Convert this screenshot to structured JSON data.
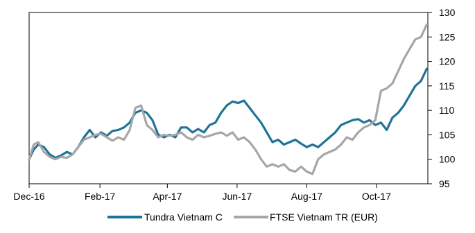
{
  "chart_data": {
    "type": "line",
    "title": "",
    "xlabel": "",
    "ylabel": "",
    "x_ticks": [
      "Dec-16",
      "Feb-17",
      "Apr-17",
      "Jun-17",
      "Aug-17",
      "Oct-17"
    ],
    "x_range": [
      "2016-12-01",
      "2017-11-15"
    ],
    "ylim": [
      95,
      130
    ],
    "y_ticks": [
      95,
      100,
      105,
      110,
      115,
      120,
      125,
      130
    ],
    "y_axis_side": "right",
    "grid": false,
    "legend": "bottom",
    "series": [
      {
        "name": "Tundra Vietnam C",
        "color": "#1e7396",
        "points": [
          [
            "2016-12-01",
            100.0
          ],
          [
            "2016-12-05",
            102.0
          ],
          [
            "2016-12-09",
            103.0
          ],
          [
            "2016-12-14",
            102.5
          ],
          [
            "2016-12-19",
            101.0
          ],
          [
            "2016-12-24",
            100.3
          ],
          [
            "2016-12-29",
            100.8
          ],
          [
            "2017-01-03",
            101.5
          ],
          [
            "2017-01-08",
            101.0
          ],
          [
            "2017-01-13",
            102.5
          ],
          [
            "2017-01-18",
            104.5
          ],
          [
            "2017-01-23",
            106.0
          ],
          [
            "2017-01-28",
            104.5
          ],
          [
            "2017-02-02",
            105.5
          ],
          [
            "2017-02-07",
            104.8
          ],
          [
            "2017-02-12",
            105.8
          ],
          [
            "2017-02-17",
            106.0
          ],
          [
            "2017-02-22",
            106.5
          ],
          [
            "2017-02-27",
            107.5
          ],
          [
            "2017-03-04",
            109.5
          ],
          [
            "2017-03-09",
            110.0
          ],
          [
            "2017-03-14",
            109.5
          ],
          [
            "2017-03-19",
            108.0
          ],
          [
            "2017-03-24",
            105.0
          ],
          [
            "2017-03-29",
            104.5
          ],
          [
            "2017-04-03",
            105.0
          ],
          [
            "2017-04-08",
            104.5
          ],
          [
            "2017-04-13",
            106.5
          ],
          [
            "2017-04-18",
            106.5
          ],
          [
            "2017-04-23",
            105.5
          ],
          [
            "2017-04-28",
            106.2
          ],
          [
            "2017-05-03",
            105.5
          ],
          [
            "2017-05-08",
            107.0
          ],
          [
            "2017-05-13",
            107.5
          ],
          [
            "2017-05-18",
            109.5
          ],
          [
            "2017-05-23",
            111.0
          ],
          [
            "2017-05-28",
            111.8
          ],
          [
            "2017-06-02",
            111.5
          ],
          [
            "2017-06-07",
            112.0
          ],
          [
            "2017-06-12",
            110.5
          ],
          [
            "2017-06-17",
            109.0
          ],
          [
            "2017-06-22",
            107.5
          ],
          [
            "2017-06-27",
            105.5
          ],
          [
            "2017-07-02",
            103.5
          ],
          [
            "2017-07-07",
            104.0
          ],
          [
            "2017-07-12",
            103.0
          ],
          [
            "2017-07-17",
            103.5
          ],
          [
            "2017-07-22",
            104.0
          ],
          [
            "2017-07-27",
            103.2
          ],
          [
            "2017-08-01",
            102.5
          ],
          [
            "2017-08-06",
            103.0
          ],
          [
            "2017-08-11",
            102.5
          ],
          [
            "2017-08-16",
            103.5
          ],
          [
            "2017-08-21",
            104.5
          ],
          [
            "2017-08-26",
            105.5
          ],
          [
            "2017-08-31",
            107.0
          ],
          [
            "2017-09-05",
            107.5
          ],
          [
            "2017-09-10",
            108.0
          ],
          [
            "2017-09-15",
            108.2
          ],
          [
            "2017-09-20",
            107.5
          ],
          [
            "2017-09-25",
            108.0
          ],
          [
            "2017-09-30",
            107.0
          ],
          [
            "2017-10-05",
            107.5
          ],
          [
            "2017-10-10",
            106.0
          ],
          [
            "2017-10-15",
            108.5
          ],
          [
            "2017-10-20",
            109.5
          ],
          [
            "2017-10-25",
            111.0
          ],
          [
            "2017-10-30",
            113.0
          ],
          [
            "2017-11-04",
            115.0
          ],
          [
            "2017-11-09",
            116.0
          ],
          [
            "2017-11-14",
            118.5
          ]
        ]
      },
      {
        "name": "FTSE Vietnam TR (EUR)",
        "color": "#a6a6a6",
        "points": [
          [
            "2016-12-01",
            100.0
          ],
          [
            "2016-12-05",
            103.0
          ],
          [
            "2016-12-09",
            103.5
          ],
          [
            "2016-12-14",
            101.5
          ],
          [
            "2016-12-19",
            100.5
          ],
          [
            "2016-12-24",
            100.0
          ],
          [
            "2016-12-29",
            100.5
          ],
          [
            "2017-01-03",
            100.3
          ],
          [
            "2017-01-08",
            101.0
          ],
          [
            "2017-01-13",
            102.5
          ],
          [
            "2017-01-18",
            104.0
          ],
          [
            "2017-01-23",
            104.5
          ],
          [
            "2017-01-28",
            105.0
          ],
          [
            "2017-02-02",
            105.2
          ],
          [
            "2017-02-07",
            104.5
          ],
          [
            "2017-02-12",
            103.8
          ],
          [
            "2017-02-17",
            104.5
          ],
          [
            "2017-02-22",
            104.0
          ],
          [
            "2017-02-27",
            106.0
          ],
          [
            "2017-03-04",
            110.5
          ],
          [
            "2017-03-09",
            111.0
          ],
          [
            "2017-03-14",
            107.0
          ],
          [
            "2017-03-19",
            106.0
          ],
          [
            "2017-03-24",
            104.5
          ],
          [
            "2017-03-29",
            105.0
          ],
          [
            "2017-04-03",
            104.8
          ],
          [
            "2017-04-08",
            105.0
          ],
          [
            "2017-04-13",
            105.5
          ],
          [
            "2017-04-18",
            104.5
          ],
          [
            "2017-04-23",
            104.0
          ],
          [
            "2017-04-28",
            105.0
          ],
          [
            "2017-05-03",
            104.5
          ],
          [
            "2017-05-08",
            104.8
          ],
          [
            "2017-05-13",
            105.2
          ],
          [
            "2017-05-18",
            105.5
          ],
          [
            "2017-05-23",
            104.8
          ],
          [
            "2017-05-28",
            105.5
          ],
          [
            "2017-06-02",
            104.0
          ],
          [
            "2017-06-07",
            104.5
          ],
          [
            "2017-06-12",
            103.5
          ],
          [
            "2017-06-17",
            102.0
          ],
          [
            "2017-06-22",
            100.0
          ],
          [
            "2017-06-27",
            98.5
          ],
          [
            "2017-07-02",
            99.0
          ],
          [
            "2017-07-07",
            98.5
          ],
          [
            "2017-07-12",
            99.0
          ],
          [
            "2017-07-17",
            97.8
          ],
          [
            "2017-07-22",
            97.5
          ],
          [
            "2017-07-27",
            98.5
          ],
          [
            "2017-08-01",
            97.5
          ],
          [
            "2017-08-06",
            97.0
          ],
          [
            "2017-08-11",
            100.0
          ],
          [
            "2017-08-16",
            101.0
          ],
          [
            "2017-08-21",
            101.5
          ],
          [
            "2017-08-26",
            102.0
          ],
          [
            "2017-08-31",
            103.0
          ],
          [
            "2017-09-05",
            104.5
          ],
          [
            "2017-09-10",
            104.0
          ],
          [
            "2017-09-15",
            105.5
          ],
          [
            "2017-09-20",
            106.5
          ],
          [
            "2017-09-25",
            107.0
          ],
          [
            "2017-09-30",
            108.0
          ],
          [
            "2017-10-05",
            114.0
          ],
          [
            "2017-10-10",
            114.5
          ],
          [
            "2017-10-15",
            115.5
          ],
          [
            "2017-10-20",
            118.0
          ],
          [
            "2017-10-25",
            120.5
          ],
          [
            "2017-10-30",
            122.5
          ],
          [
            "2017-11-04",
            124.5
          ],
          [
            "2017-11-09",
            125.0
          ],
          [
            "2017-11-14",
            127.5
          ]
        ]
      }
    ]
  }
}
